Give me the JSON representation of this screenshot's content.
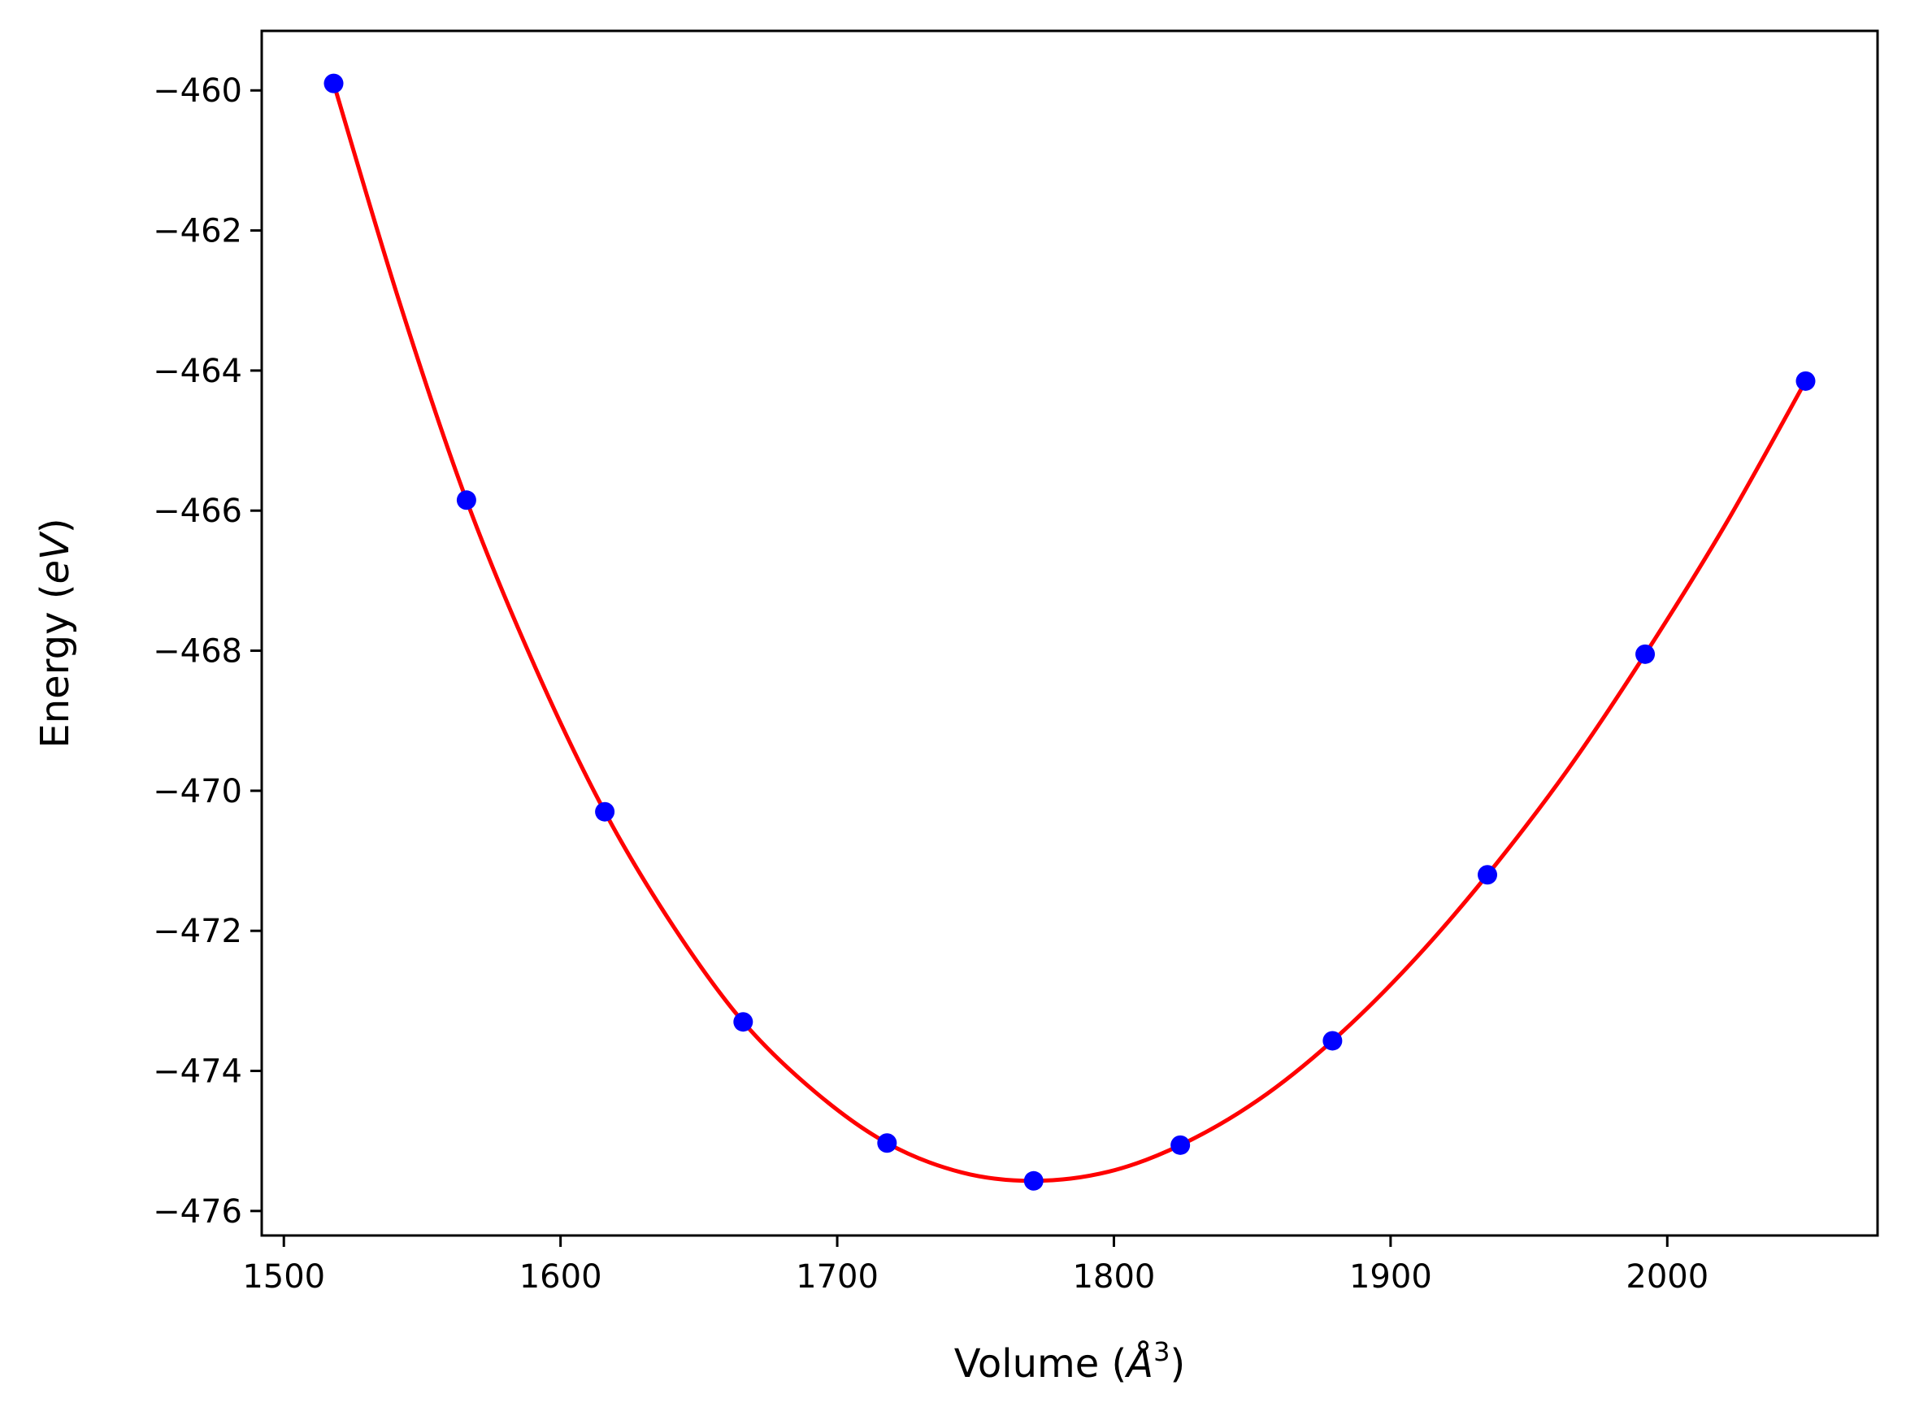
{
  "chart_data": {
    "type": "scatter",
    "title": "",
    "xlabel_parts": [
      "Volume (",
      "Å",
      "3",
      ")"
    ],
    "ylabel_parts": [
      "Energy (",
      "eV",
      ")"
    ],
    "xlim": [
      1492,
      2076
    ],
    "ylim": [
      -476.35,
      -459.15
    ],
    "xticks": [
      1500,
      1600,
      1700,
      1800,
      1900,
      2000
    ],
    "yticks": [
      -460,
      -462,
      -464,
      -466,
      -468,
      -470,
      -472,
      -474,
      -476
    ],
    "xtick_labels": [
      "1500",
      "1600",
      "1700",
      "1800",
      "1900",
      "2000"
    ],
    "ytick_labels": [
      "−460",
      "−462",
      "−464",
      "−466",
      "−468",
      "−470",
      "−472",
      "−474",
      "−476"
    ],
    "grid": false,
    "legend": "none",
    "series": [
      {
        "kind": "points",
        "color": "#0000ff",
        "x": [
          1518,
          1566,
          1616,
          1666,
          1718,
          1771,
          1824,
          1879,
          1935,
          1992,
          2050
        ],
        "y": [
          -459.9,
          -465.85,
          -470.3,
          -473.3,
          -475.03,
          -475.57,
          -475.06,
          -473.57,
          -471.2,
          -468.05,
          -464.15
        ]
      },
      {
        "kind": "fit-curve",
        "color": "#ff0000",
        "x": [
          1518,
          1542,
          1566,
          1591,
          1616,
          1641,
          1666,
          1692,
          1718,
          1745,
          1771,
          1798,
          1824,
          1852,
          1879,
          1907,
          1935,
          1964,
          1992,
          2021,
          2050
        ],
        "y": [
          -459.9,
          -463.05,
          -465.85,
          -468.25,
          -470.3,
          -471.95,
          -473.3,
          -474.3,
          -475.03,
          -475.45,
          -475.57,
          -475.44,
          -475.06,
          -474.42,
          -473.57,
          -472.48,
          -471.2,
          -469.7,
          -468.05,
          -466.2,
          -464.15
        ]
      }
    ]
  }
}
